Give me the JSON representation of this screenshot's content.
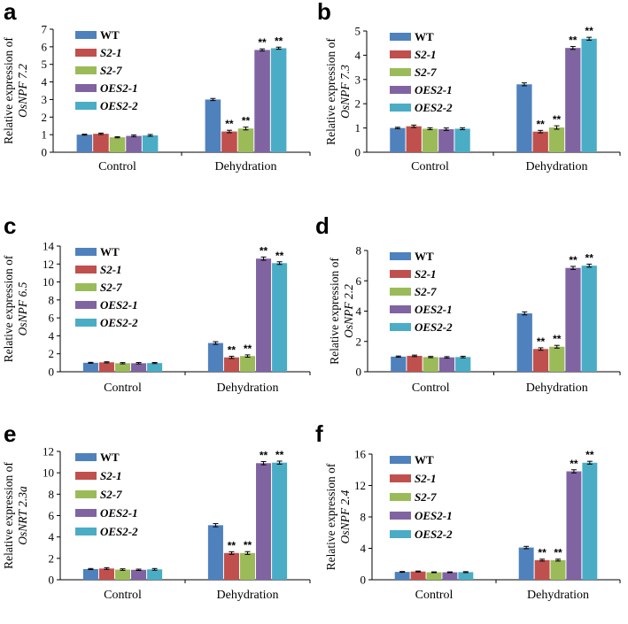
{
  "series_colors": [
    "#4f81bd",
    "#c0504d",
    "#9bbb59",
    "#8064a2",
    "#4bacc6"
  ],
  "chart_data": [
    {
      "type": "bar",
      "panel": "a",
      "ylabel_line1": "Relative expression of",
      "ylabel_line2": "OsNPF 7.2",
      "categories": [
        "Control",
        "Dehydration"
      ],
      "ylim": [
        0,
        7
      ],
      "yticks": [
        0,
        1,
        2,
        3,
        4,
        5,
        6,
        7
      ],
      "series": [
        {
          "name": "WT",
          "values": [
            1.0,
            3.0
          ],
          "errors": [
            0.03,
            0.06
          ],
          "marks": [
            "",
            ""
          ]
        },
        {
          "name": "S2-1",
          "values": [
            1.05,
            1.18
          ],
          "errors": [
            0.04,
            0.07
          ],
          "marks": [
            "",
            "**"
          ]
        },
        {
          "name": "S2-7",
          "values": [
            0.85,
            1.35
          ],
          "errors": [
            0.03,
            0.08
          ],
          "marks": [
            "",
            "**"
          ]
        },
        {
          "name": "OES2-1",
          "values": [
            0.93,
            5.82
          ],
          "errors": [
            0.05,
            0.06
          ],
          "marks": [
            "",
            "**"
          ]
        },
        {
          "name": "OES2-2",
          "values": [
            0.96,
            5.92
          ],
          "errors": [
            0.05,
            0.06
          ],
          "marks": [
            "",
            "**"
          ]
        }
      ]
    },
    {
      "type": "bar",
      "panel": "b",
      "ylabel_line1": "Relative expression of",
      "ylabel_line2": "OsNPF 7.3",
      "categories": [
        "Control",
        "Dehydration"
      ],
      "ylim": [
        0,
        5
      ],
      "yticks": [
        0,
        1,
        2,
        3,
        4,
        5
      ],
      "series": [
        {
          "name": "WT",
          "values": [
            1.0,
            2.8
          ],
          "errors": [
            0.03,
            0.06
          ],
          "marks": [
            "",
            ""
          ]
        },
        {
          "name": "S2-1",
          "values": [
            1.07,
            0.85
          ],
          "errors": [
            0.05,
            0.05
          ],
          "marks": [
            "",
            "**"
          ]
        },
        {
          "name": "S2-7",
          "values": [
            0.97,
            1.02
          ],
          "errors": [
            0.04,
            0.07
          ],
          "marks": [
            "",
            "**"
          ]
        },
        {
          "name": "OES2-1",
          "values": [
            0.95,
            4.3
          ],
          "errors": [
            0.05,
            0.06
          ],
          "marks": [
            "",
            "**"
          ]
        },
        {
          "name": "OES2-2",
          "values": [
            0.97,
            4.68
          ],
          "errors": [
            0.04,
            0.06
          ],
          "marks": [
            "",
            "**"
          ]
        }
      ]
    },
    {
      "type": "bar",
      "panel": "c",
      "ylabel_line1": "Relative expression of",
      "ylabel_line2": "OsNPF 6.5",
      "categories": [
        "Control",
        "Dehydration"
      ],
      "ylim": [
        0,
        14
      ],
      "yticks": [
        0,
        2,
        4,
        6,
        8,
        10,
        12,
        14
      ],
      "series": [
        {
          "name": "WT",
          "values": [
            1.0,
            3.2
          ],
          "errors": [
            0.05,
            0.15
          ],
          "marks": [
            "",
            ""
          ]
        },
        {
          "name": "S2-1",
          "values": [
            1.05,
            1.6
          ],
          "errors": [
            0.06,
            0.12
          ],
          "marks": [
            "",
            "**"
          ]
        },
        {
          "name": "S2-7",
          "values": [
            0.95,
            1.75
          ],
          "errors": [
            0.07,
            0.13
          ],
          "marks": [
            "",
            "**"
          ]
        },
        {
          "name": "OES2-1",
          "values": [
            0.95,
            12.6
          ],
          "errors": [
            0.08,
            0.18
          ],
          "marks": [
            "",
            "**"
          ]
        },
        {
          "name": "OES2-2",
          "values": [
            0.97,
            12.1
          ],
          "errors": [
            0.06,
            0.15
          ],
          "marks": [
            "",
            "**"
          ]
        }
      ]
    },
    {
      "type": "bar",
      "panel": "d",
      "ylabel_line1": "Relative expression of",
      "ylabel_line2": "OsNPF 2.2",
      "categories": [
        "Control",
        "Dehydration"
      ],
      "ylim": [
        0,
        8
      ],
      "yticks": [
        0,
        2,
        4,
        6,
        8
      ],
      "series": [
        {
          "name": "WT",
          "values": [
            1.0,
            3.85
          ],
          "errors": [
            0.04,
            0.1
          ],
          "marks": [
            "",
            ""
          ]
        },
        {
          "name": "S2-1",
          "values": [
            1.05,
            1.5
          ],
          "errors": [
            0.05,
            0.08
          ],
          "marks": [
            "",
            "**"
          ]
        },
        {
          "name": "S2-7",
          "values": [
            0.97,
            1.65
          ],
          "errors": [
            0.04,
            0.09
          ],
          "marks": [
            "",
            "**"
          ]
        },
        {
          "name": "OES2-1",
          "values": [
            0.95,
            6.85
          ],
          "errors": [
            0.05,
            0.1
          ],
          "marks": [
            "",
            "**"
          ]
        },
        {
          "name": "OES2-2",
          "values": [
            0.97,
            7.0
          ],
          "errors": [
            0.05,
            0.1
          ],
          "marks": [
            "",
            "**"
          ]
        }
      ]
    },
    {
      "type": "bar",
      "panel": "e",
      "ylabel_line1": "Relative expression of",
      "ylabel_line2": "OsNRT 2.3a",
      "categories": [
        "Control",
        "Dehydration"
      ],
      "ylim": [
        0,
        12
      ],
      "yticks": [
        0,
        2,
        4,
        6,
        8,
        10,
        12
      ],
      "series": [
        {
          "name": "WT",
          "values": [
            1.0,
            5.1
          ],
          "errors": [
            0.05,
            0.15
          ],
          "marks": [
            "",
            ""
          ]
        },
        {
          "name": "S2-1",
          "values": [
            1.05,
            2.5
          ],
          "errors": [
            0.08,
            0.12
          ],
          "marks": [
            "",
            "**"
          ]
        },
        {
          "name": "S2-7",
          "values": [
            0.95,
            2.5
          ],
          "errors": [
            0.07,
            0.13
          ],
          "marks": [
            "",
            "**"
          ]
        },
        {
          "name": "OES2-1",
          "values": [
            0.93,
            10.9
          ],
          "errors": [
            0.06,
            0.15
          ],
          "marks": [
            "",
            "**"
          ]
        },
        {
          "name": "OES2-2",
          "values": [
            0.97,
            10.95
          ],
          "errors": [
            0.08,
            0.14
          ],
          "marks": [
            "",
            "**"
          ]
        }
      ]
    },
    {
      "type": "bar",
      "panel": "f",
      "ylabel_line1": "Relative expression of",
      "ylabel_line2": "OsNPF 2.4",
      "categories": [
        "Control",
        "Dehydration"
      ],
      "ylim": [
        0,
        16
      ],
      "yticks": [
        0,
        4,
        8,
        12,
        16
      ],
      "series": [
        {
          "name": "WT",
          "values": [
            1.0,
            4.1
          ],
          "errors": [
            0.05,
            0.15
          ],
          "marks": [
            "",
            ""
          ]
        },
        {
          "name": "S2-1",
          "values": [
            1.05,
            2.5
          ],
          "errors": [
            0.06,
            0.12
          ],
          "marks": [
            "",
            "**"
          ]
        },
        {
          "name": "S2-7",
          "values": [
            0.95,
            2.5
          ],
          "errors": [
            0.05,
            0.12
          ],
          "marks": [
            "",
            "**"
          ]
        },
        {
          "name": "OES2-1",
          "values": [
            0.95,
            13.8
          ],
          "errors": [
            0.05,
            0.2
          ],
          "marks": [
            "",
            "**"
          ]
        },
        {
          "name": "OES2-2",
          "values": [
            0.97,
            14.9
          ],
          "errors": [
            0.06,
            0.18
          ],
          "marks": [
            "",
            "**"
          ]
        }
      ]
    }
  ]
}
